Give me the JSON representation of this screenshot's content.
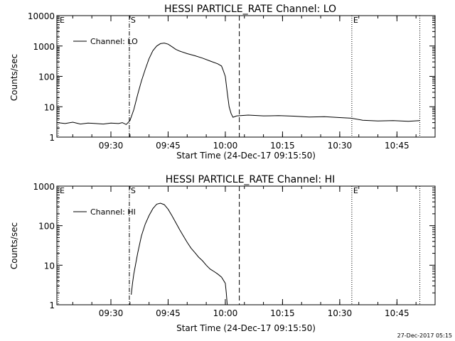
{
  "footer": {
    "timestamp": "27-Dec-2017 05:15"
  },
  "chart_data": [
    {
      "type": "line",
      "title": "HESSI PARTICLE_RATE Channel: LO",
      "xlabel": "Start Time (24-Dec-17 09:15:50)",
      "ylabel": "Counts/sec",
      "yscale": "log",
      "xlim": [
        "09:15:50",
        "10:55:00"
      ],
      "ylim": [
        1,
        10000
      ],
      "xticks": [
        "09:30",
        "09:45",
        "10:00",
        "10:15",
        "10:30",
        "10:45"
      ],
      "yticks": [
        "1",
        "10",
        "100",
        "1000",
        "10000"
      ],
      "legend": {
        "entries": [
          "Channel: LO"
        ],
        "placement": "top-left"
      },
      "markers": [
        {
          "label": "E",
          "time": "09:15:50",
          "style": "dotted"
        },
        {
          "label": "S",
          "time": "09:34:50",
          "style": "dash-dot"
        },
        {
          "label": "",
          "time": "10:03:40",
          "style": "dashed"
        },
        {
          "label": "E",
          "time": "10:33:10",
          "style": "dotted"
        },
        {
          "label": "",
          "time": "10:51:00",
          "style": "dotted"
        }
      ],
      "series": [
        {
          "name": "Channel: LO",
          "x": [
            "09:16:00",
            "09:18:00",
            "09:20:00",
            "09:22:00",
            "09:24:00",
            "09:26:00",
            "09:28:00",
            "09:30:00",
            "09:32:00",
            "09:33:00",
            "09:34:00",
            "09:35:00",
            "09:36:00",
            "09:37:00",
            "09:38:00",
            "09:39:00",
            "09:40:00",
            "09:41:00",
            "09:42:00",
            "09:43:00",
            "09:44:00",
            "09:45:00",
            "09:46:00",
            "09:47:00",
            "09:48:00",
            "09:50:00",
            "09:52:00",
            "09:54:00",
            "09:56:00",
            "09:58:00",
            "09:59:00",
            "09:59:30",
            "10:00:00",
            "10:00:30",
            "10:01:00",
            "10:01:30",
            "10:02:00",
            "10:03:00",
            "10:06:00",
            "10:10:00",
            "10:14:00",
            "10:18:00",
            "10:22:00",
            "10:26:00",
            "10:30:00",
            "10:33:00",
            "10:36:00",
            "10:40:00",
            "10:44:00",
            "10:48:00",
            "10:51:00"
          ],
          "y": [
            3.0,
            2.8,
            3.1,
            2.7,
            2.9,
            2.8,
            2.7,
            2.9,
            2.8,
            3.0,
            2.6,
            3.5,
            8,
            25,
            70,
            170,
            380,
            700,
            1000,
            1200,
            1250,
            1150,
            950,
            780,
            680,
            560,
            480,
            400,
            320,
            260,
            220,
            150,
            100,
            30,
            10,
            6,
            4.5,
            5.0,
            5.3,
            5.0,
            5.1,
            4.9,
            4.6,
            4.7,
            4.4,
            4.2,
            3.6,
            3.4,
            3.5,
            3.3,
            3.5
          ]
        }
      ]
    },
    {
      "type": "line",
      "title": "HESSI PARTICLE_RATE Channel: HI",
      "xlabel": "Start Time (24-Dec-17 09:15:50)",
      "ylabel": "Counts/sec",
      "yscale": "log",
      "xlim": [
        "09:15:50",
        "10:55:00"
      ],
      "ylim": [
        1,
        1000
      ],
      "xticks": [
        "09:30",
        "09:45",
        "10:00",
        "10:15",
        "10:30",
        "10:45"
      ],
      "yticks": [
        "1",
        "10",
        "100",
        "1000"
      ],
      "legend": {
        "entries": [
          "Channel: HI"
        ],
        "placement": "top-left"
      },
      "markers": [
        {
          "label": "E",
          "time": "09:15:50",
          "style": "dotted"
        },
        {
          "label": "S",
          "time": "09:34:50",
          "style": "dash-dot"
        },
        {
          "label": "",
          "time": "10:03:40",
          "style": "dashed"
        },
        {
          "label": "E",
          "time": "10:33:10",
          "style": "dotted"
        },
        {
          "label": "",
          "time": "10:51:00",
          "style": "dotted"
        }
      ],
      "series": [
        {
          "name": "Channel: HI",
          "x": [
            "09:35:20",
            "09:35:40",
            "09:36:00",
            "09:37:00",
            "09:38:00",
            "09:39:00",
            "09:40:00",
            "09:41:00",
            "09:42:00",
            "09:43:00",
            "09:44:00",
            "09:45:00",
            "09:46:00",
            "09:47:00",
            "09:48:00",
            "09:49:00",
            "09:50:00",
            "09:51:00",
            "09:52:00",
            "09:53:00",
            "09:54:00",
            "09:55:00",
            "09:56:00",
            "09:57:00",
            "09:58:00",
            "09:59:00",
            "10:00:00",
            "10:00:15",
            "10:00:30"
          ],
          "y": [
            1.8,
            3.5,
            6,
            20,
            55,
            110,
            180,
            270,
            350,
            370,
            340,
            260,
            180,
            120,
            80,
            55,
            38,
            27,
            21,
            16,
            13,
            10,
            8,
            7,
            6,
            5,
            3.5,
            2,
            1
          ]
        }
      ]
    }
  ]
}
